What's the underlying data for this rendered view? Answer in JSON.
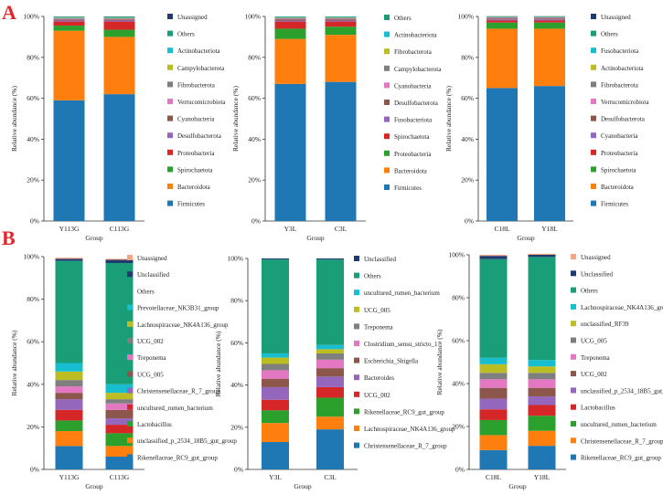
{
  "panels": [
    {
      "letter": "A"
    },
    {
      "letter": "B"
    }
  ],
  "colors": {
    "Firmicutes": "#1f77b4",
    "Bacteroidota": "#ff7f0e",
    "Spirochaetota": "#2ca02c",
    "Proteobacteria": "#d62728",
    "Desulfobacterota": "#9467bd",
    "Cyanobacteria": "#8c564b",
    "Verrucomicrobiota": "#e377c2",
    "Fibrobacterota": "#7f7f7f",
    "Campylobacterota": "#bcbd22",
    "Actinobacteriota": "#17becf",
    "Others": "#1a9e77",
    "Unassigned": "#1f3a6e",
    "Fusobacteriota": "#d62728",
    "Unclassified": "#1f3a6e"
  },
  "chart_data": [
    {
      "type": "bar",
      "stacked": true,
      "id": "A1",
      "categories": [
        "Y113G",
        "C113G"
      ],
      "xlabel": "Group",
      "ylabel": "Relative abundance (%)",
      "yticks": [
        "0%",
        "20%",
        "40%",
        "60%",
        "80%",
        "100%"
      ],
      "ylim": [
        0,
        100
      ],
      "series": [
        {
          "name": "Firmicutes",
          "color": "#1f77b4",
          "values": [
            59,
            62
          ]
        },
        {
          "name": "Bacteroidota",
          "color": "#ff7f0e",
          "values": [
            34,
            28
          ]
        },
        {
          "name": "Spirochaetota",
          "color": "#2ca02c",
          "values": [
            2.5,
            3.5
          ]
        },
        {
          "name": "Proteobacteria",
          "color": "#d62728",
          "values": [
            2,
            4
          ]
        },
        {
          "name": "Desulfobacterota",
          "color": "#9467bd",
          "values": [
            0.5,
            0.5
          ]
        },
        {
          "name": "Cyanobacteria",
          "color": "#8c564b",
          "values": [
            0.5,
            0.5
          ]
        },
        {
          "name": "Verrucomicrobiota",
          "color": "#e377c2",
          "values": [
            0.3,
            0.3
          ]
        },
        {
          "name": "Fibrobacterota",
          "color": "#7f7f7f",
          "values": [
            0.4,
            0.3
          ]
        },
        {
          "name": "Campylobacterota",
          "color": "#bcbd22",
          "values": [
            0.2,
            0.2
          ]
        },
        {
          "name": "Actinobacteriota",
          "color": "#17becf",
          "values": [
            0.2,
            0.2
          ]
        },
        {
          "name": "Others",
          "color": "#1a9e77",
          "values": [
            0.3,
            0.4
          ]
        },
        {
          "name": "Unassigned",
          "color": "#1f3a6e",
          "values": [
            0.1,
            0.1
          ]
        }
      ]
    },
    {
      "type": "bar",
      "stacked": true,
      "id": "A2",
      "categories": [
        "Y3L",
        "C3L"
      ],
      "xlabel": "Group",
      "ylabel": "Relative abundance (%)",
      "yticks": [
        "0%",
        "20%",
        "40%",
        "60%",
        "80%",
        "100%"
      ],
      "ylim": [
        0,
        100
      ],
      "series": [
        {
          "name": "Firmicutes",
          "color": "#1f77b4",
          "values": [
            67,
            68
          ]
        },
        {
          "name": "Bacteroidota",
          "color": "#ff7f0e",
          "values": [
            22,
            23
          ]
        },
        {
          "name": "Proteobacteria",
          "color": "#2ca02c",
          "values": [
            5,
            4
          ]
        },
        {
          "name": "Spirochaetota",
          "color": "#d62728",
          "values": [
            3.5,
            2.5
          ]
        },
        {
          "name": "Fusobacteriota",
          "color": "#9467bd",
          "values": [
            0.5,
            0.5
          ]
        },
        {
          "name": "Desulfobacterota",
          "color": "#8c564b",
          "values": [
            0.6,
            0.6
          ]
        },
        {
          "name": "Cyanobacteria",
          "color": "#e377c2",
          "values": [
            0.3,
            0.3
          ]
        },
        {
          "name": "Campylobacterota",
          "color": "#7f7f7f",
          "values": [
            0.4,
            0.4
          ]
        },
        {
          "name": "Fibrobacterota",
          "color": "#bcbd22",
          "values": [
            0.2,
            0.2
          ]
        },
        {
          "name": "Actinobacteriota",
          "color": "#17becf",
          "values": [
            0.2,
            0.2
          ]
        },
        {
          "name": "Others",
          "color": "#1a9e77",
          "values": [
            0.3,
            0.3
          ]
        }
      ]
    },
    {
      "type": "bar",
      "stacked": true,
      "id": "A3",
      "categories": [
        "C18L",
        "Y18L"
      ],
      "xlabel": "Group",
      "ylabel": "Relative abundance (%)",
      "yticks": [
        "0%",
        "20%",
        "40%",
        "60%",
        "80%",
        "100%"
      ],
      "ylim": [
        0,
        100
      ],
      "series": [
        {
          "name": "Firmicutes",
          "color": "#1f77b4",
          "values": [
            65,
            66
          ]
        },
        {
          "name": "Bacteroidota",
          "color": "#ff7f0e",
          "values": [
            29,
            28
          ]
        },
        {
          "name": "Spirochaetota",
          "color": "#2ca02c",
          "values": [
            3,
            3
          ]
        },
        {
          "name": "Proteobacteria",
          "color": "#d62728",
          "values": [
            1,
            1
          ]
        },
        {
          "name": "Cyanobacteria",
          "color": "#9467bd",
          "values": [
            0.5,
            0.5
          ]
        },
        {
          "name": "Desulfobacterota",
          "color": "#8c564b",
          "values": [
            0.5,
            0.5
          ]
        },
        {
          "name": "Verrucomicrobiota",
          "color": "#e377c2",
          "values": [
            0.3,
            0.3
          ]
        },
        {
          "name": "Fibrobacterota",
          "color": "#7f7f7f",
          "values": [
            0.3,
            0.3
          ]
        },
        {
          "name": "Actinobacteriota",
          "color": "#bcbd22",
          "values": [
            0.1,
            0.1
          ]
        },
        {
          "name": "Fusobacteriota",
          "color": "#17becf",
          "values": [
            0.1,
            0.1
          ]
        },
        {
          "name": "Others",
          "color": "#1a9e77",
          "values": [
            0.2,
            0.2
          ]
        },
        {
          "name": "Unassigned",
          "color": "#1f3a6e",
          "values": [
            0.1,
            0.1
          ]
        }
      ]
    },
    {
      "type": "bar",
      "stacked": true,
      "id": "B1",
      "categories": [
        "Y113G",
        "C113G"
      ],
      "xlabel": "Group",
      "ylabel": "Relative abundance (%)",
      "yticks": [
        "0%",
        "20%",
        "40%",
        "60%",
        "80%",
        "100%"
      ],
      "ylim": [
        0,
        100
      ],
      "series": [
        {
          "name": "Rikenellaceae_RC9_gut_group",
          "color": "#1f77b4",
          "values": [
            11,
            6
          ]
        },
        {
          "name": "unclassified_p_2534_18B5_gut_group",
          "color": "#ff7f0e",
          "values": [
            7,
            5
          ]
        },
        {
          "name": "Lactobacillus",
          "color": "#2ca02c",
          "values": [
            5,
            6
          ]
        },
        {
          "name": "uncultured_rumen_bacterium",
          "color": "#d62728",
          "values": [
            5,
            4
          ]
        },
        {
          "name": "Christensenellaceae_R_7_group",
          "color": "#9467bd",
          "values": [
            5,
            3
          ]
        },
        {
          "name": "UCG_005",
          "color": "#8c564b",
          "values": [
            3,
            4
          ]
        },
        {
          "name": "Treponema",
          "color": "#e377c2",
          "values": [
            3,
            3
          ]
        },
        {
          "name": "UCG_002",
          "color": "#7f7f7f",
          "values": [
            3,
            2
          ]
        },
        {
          "name": "Lachnospiraceae_NK4A136_group",
          "color": "#bcbd22",
          "values": [
            4,
            3
          ]
        },
        {
          "name": "Prevotellaceae_NK3B31_group",
          "color": "#17becf",
          "values": [
            4,
            4
          ]
        },
        {
          "name": "Others",
          "color": "#1a9e77",
          "values": [
            48,
            57
          ]
        },
        {
          "name": "Unclassified",
          "color": "#1f3a6e",
          "values": [
            1,
            1.5
          ]
        },
        {
          "name": "Unassigned",
          "color": "#f4a582",
          "values": [
            0.5,
            0.5
          ]
        }
      ]
    },
    {
      "type": "bar",
      "stacked": true,
      "id": "B2",
      "categories": [
        "Y3L",
        "C3L"
      ],
      "xlabel": "Group",
      "ylabel": "Relative abundance (%)",
      "yticks": [
        "0%",
        "20%",
        "40%",
        "60%",
        "80%",
        "100%"
      ],
      "ylim": [
        0,
        100
      ],
      "series": [
        {
          "name": "Christensenellaceae_R_7_group",
          "color": "#1f77b4",
          "values": [
            13,
            19
          ]
        },
        {
          "name": "Lachnospiraceae_NK4A136_group",
          "color": "#ff7f0e",
          "values": [
            9,
            6
          ]
        },
        {
          "name": "Rikenellaceae_RC9_gut_group",
          "color": "#2ca02c",
          "values": [
            6,
            9
          ]
        },
        {
          "name": "UCG_002",
          "color": "#d62728",
          "values": [
            5,
            5
          ]
        },
        {
          "name": "Bacteroides",
          "color": "#9467bd",
          "values": [
            6,
            5
          ]
        },
        {
          "name": "Escherichia_Shigella",
          "color": "#8c564b",
          "values": [
            4,
            4
          ]
        },
        {
          "name": "Clostridium_sensu_stricto_1",
          "color": "#e377c2",
          "values": [
            4,
            4
          ]
        },
        {
          "name": "Treponema",
          "color": "#7f7f7f",
          "values": [
            3,
            3
          ]
        },
        {
          "name": "UCG_005",
          "color": "#bcbd22",
          "values": [
            3,
            2
          ]
        },
        {
          "name": "uncultured_rumen_bacterium",
          "color": "#17becf",
          "values": [
            2,
            2
          ]
        },
        {
          "name": "Others",
          "color": "#1a9e77",
          "values": [
            44.5,
            40.5
          ]
        },
        {
          "name": "Unclassified",
          "color": "#1f3a6e",
          "values": [
            0.5,
            0.5
          ]
        }
      ]
    },
    {
      "type": "bar",
      "stacked": true,
      "id": "B3",
      "categories": [
        "C18L",
        "Y18L"
      ],
      "xlabel": "Group",
      "ylabel": "Relative abundance (%)",
      "yticks": [
        "0%",
        "20%",
        "40%",
        "60%",
        "80%",
        "100%"
      ],
      "ylim": [
        0,
        100
      ],
      "series": [
        {
          "name": "Rikenellaceae_RC9_gut_group",
          "color": "#1f77b4",
          "values": [
            9,
            11
          ]
        },
        {
          "name": "Christensenellaceae_R_7_group",
          "color": "#ff7f0e",
          "values": [
            7,
            7
          ]
        },
        {
          "name": "uncultured_rumen_bacterium",
          "color": "#2ca02c",
          "values": [
            7,
            7
          ]
        },
        {
          "name": "Lactobacillus",
          "color": "#d62728",
          "values": [
            5,
            5
          ]
        },
        {
          "name": "unclassified_p_2534_18B5_gut_group",
          "color": "#9467bd",
          "values": [
            5,
            4
          ]
        },
        {
          "name": "UCG_002",
          "color": "#8c564b",
          "values": [
            5,
            4
          ]
        },
        {
          "name": "Treponema",
          "color": "#e377c2",
          "values": [
            4,
            4
          ]
        },
        {
          "name": "UCG_005",
          "color": "#7f7f7f",
          "values": [
            3,
            3
          ]
        },
        {
          "name": "unclassified_RF39",
          "color": "#bcbd22",
          "values": [
            4,
            3
          ]
        },
        {
          "name": "Lachnospiraceae_NK4A136_group",
          "color": "#17becf",
          "values": [
            3,
            3
          ]
        },
        {
          "name": "Others",
          "color": "#1a9e77",
          "values": [
            46,
            48
          ]
        },
        {
          "name": "Unclassified",
          "color": "#1f3a6e",
          "values": [
            1.5,
            1
          ]
        },
        {
          "name": "Unassigned",
          "color": "#f4a582",
          "values": [
            0.5,
            0.5
          ]
        }
      ]
    }
  ]
}
